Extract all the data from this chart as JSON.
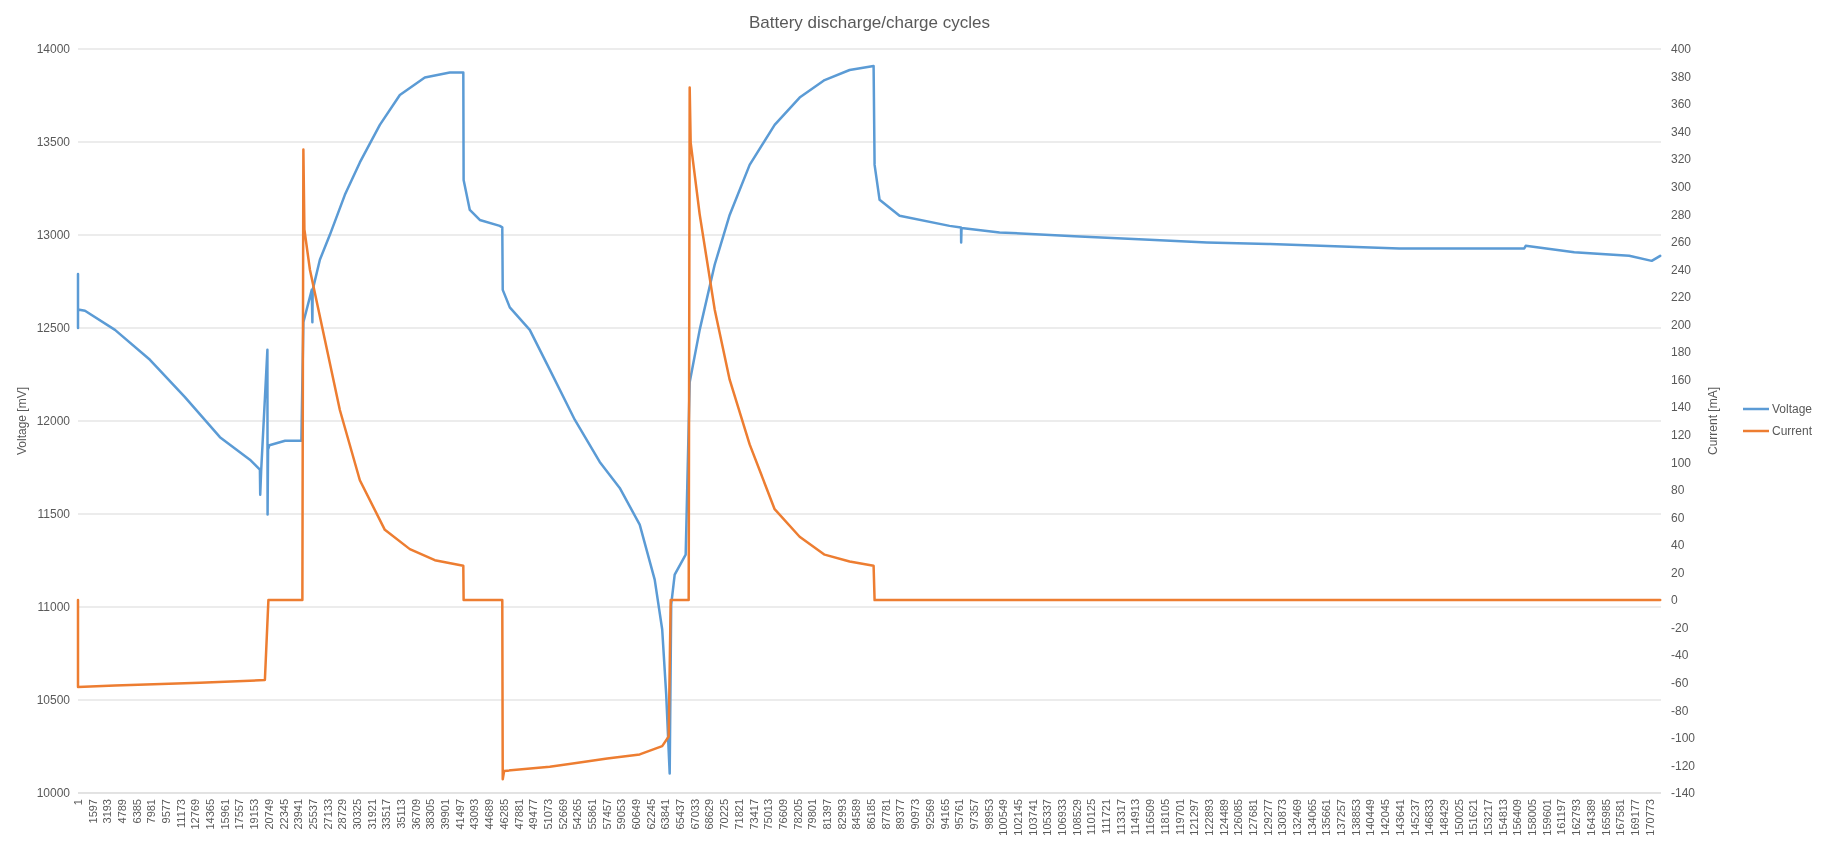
{
  "chart_data": {
    "type": "line",
    "title": "Battery discharge/charge cycles",
    "ylabel": "Voltage [mV]",
    "y2label": "Current [mA]",
    "xlim": [
      1,
      172000
    ],
    "xticks": [
      1,
      1597,
      3193,
      4789,
      6385,
      7981,
      9577,
      11173,
      12769,
      14365,
      15961,
      17557,
      19153,
      20749,
      22345,
      23941,
      25537,
      27133,
      28729,
      30325,
      31921,
      33517,
      35113,
      36709,
      38305,
      39901,
      41497,
      43093,
      44689,
      46285,
      47881,
      49477,
      51073,
      52669,
      54265,
      55861,
      57457,
      59053,
      60649,
      62245,
      63841,
      65437,
      67033,
      68629,
      70225,
      71821,
      73417,
      75013,
      76609,
      78205,
      79801,
      81397,
      82993,
      84589,
      86185,
      87781,
      89377,
      90973,
      92569,
      94165,
      95761,
      97357,
      98953,
      100549,
      102145,
      103741,
      105337,
      106933,
      108529,
      110125,
      111721,
      113317,
      114913,
      116509,
      118105,
      119701,
      121297,
      122893,
      124489,
      126085,
      127681,
      129277,
      130873,
      132469,
      134065,
      135661,
      137257,
      138853,
      140449,
      142045,
      143641,
      145237,
      146833,
      148429,
      150025,
      151621,
      153217,
      154813,
      156409,
      158005,
      159601,
      161197,
      162793,
      164389,
      165985,
      167581,
      169177,
      170773
    ],
    "ylim": [
      10000,
      14000
    ],
    "yticks": [
      10000,
      10500,
      11000,
      11500,
      12000,
      12500,
      13000,
      13500,
      14000
    ],
    "y2lim": [
      -140,
      400
    ],
    "y2ticks": [
      -140,
      -120,
      -100,
      -80,
      -60,
      -40,
      -20,
      0,
      20,
      40,
      60,
      80,
      100,
      120,
      140,
      160,
      180,
      200,
      220,
      240,
      260,
      280,
      300,
      320,
      340,
      360,
      380,
      400
    ],
    "grid": "y",
    "legend": "right",
    "series": [
      {
        "name": "Voltage",
        "color": "#5b9bd5",
        "x": [
          1,
          1,
          1,
          760,
          4018,
          7819,
          11620,
          15421,
          18679,
          19765,
          19800,
          19900,
          20580,
          20600,
          20650,
          20800,
          22500,
          24272,
          24489,
          25400,
          25467,
          25500,
          26282,
          27368,
          28997,
          30626,
          32798,
          34970,
          37685,
          40400,
          41866,
          41900,
          42572,
          43658,
          45830,
          46101,
          46150,
          46916,
          49088,
          51260,
          53975,
          56689,
          58861,
          61033,
          62662,
          63477,
          63911,
          64291,
          64454,
          64834,
          66029,
          66463,
          67549,
          69178,
          70807,
          72979,
          75694,
          78409,
          81124,
          83839,
          86446,
          86554,
          87097,
          89269,
          94698,
          95947,
          95960,
          96000,
          100128,
          108273,
          116418,
          122663,
          129315,
          143569,
          157144,
          157300,
          162574,
          168547,
          170991,
          171914
        ],
        "values": [
          12790,
          12500,
          12600,
          12593,
          12490,
          12329,
          12128,
          11913,
          11792,
          11738,
          11604,
          11730,
          12383,
          11497,
          11846,
          11870,
          11894,
          11894,
          12531,
          12705,
          12531,
          12705,
          12867,
          13001,
          13216,
          13390,
          13592,
          13753,
          13847,
          13874,
          13874,
          13296,
          13135,
          13081,
          13049,
          13041,
          12705,
          12611,
          12490,
          12276,
          12007,
          11780,
          11640,
          11443,
          11147,
          10879,
          10530,
          10105,
          11013,
          11174,
          11282,
          12208,
          12490,
          12840,
          13108,
          13377,
          13592,
          13739,
          13833,
          13887,
          13909,
          13377,
          13189,
          13103,
          13049,
          13040,
          12960,
          13038,
          13014,
          12993,
          12974,
          12960,
          12952,
          12928,
          12928,
          12942,
          12907,
          12888,
          12861,
          12888
        ]
      },
      {
        "name": "Current",
        "color": "#ed7d31",
        "axis": "y2",
        "x": [
          1,
          1,
          4018,
          13249,
          20308,
          20689,
          24380,
          24489,
          24600,
          25195,
          26824,
          28453,
          30626,
          33341,
          36056,
          38771,
          41866,
          41900,
          46101,
          46150,
          46300,
          51260,
          57504,
          61033,
          63477,
          64182,
          64400,
          66355,
          66463,
          66570,
          67549,
          69178,
          70807,
          72979,
          75694,
          78409,
          81124,
          83839,
          86446,
          86554,
          171914
        ],
        "values": [
          0,
          -63,
          -62,
          -60,
          -58,
          0,
          0,
          327,
          269,
          240,
          189,
          138,
          87,
          51,
          37,
          29,
          25,
          0,
          0,
          -130,
          -124,
          -121,
          -115,
          -112,
          -106,
          -99,
          0,
          0,
          372,
          332,
          280,
          211,
          160,
          113,
          66,
          46,
          33,
          28,
          25,
          0,
          0
        ]
      }
    ]
  }
}
